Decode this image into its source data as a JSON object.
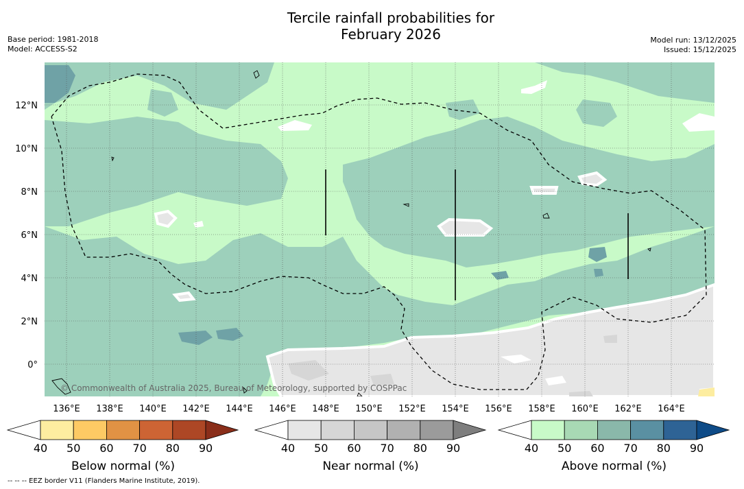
{
  "header": {
    "title_line1": "Tercile rainfall probabilities for",
    "title_line2": "February 2026",
    "base_period": "Base period: 1981-2018",
    "model": "Model: ACCESS-S2",
    "model_run": "Model run: 13/12/2025",
    "issued": "Issued: 15/12/2025"
  },
  "map": {
    "lat_labels": [
      "12°N",
      "10°N",
      "8°N",
      "6°N",
      "4°N",
      "2°N",
      "0°"
    ],
    "lon_labels": [
      "136°E",
      "138°E",
      "140°E",
      "142°E",
      "144°E",
      "146°E",
      "148°E",
      "150°E",
      "152°E",
      "154°E",
      "156°E",
      "158°E",
      "160°E",
      "162°E",
      "164°E"
    ],
    "copyright": "© Commonwealth of Australia 2025, Bureau of Meteorology, supported by COSPPac"
  },
  "colorbars": [
    {
      "label": "Below normal (%)",
      "ticks": [
        "40",
        "50",
        "60",
        "70",
        "80",
        "90"
      ],
      "colors": [
        "#ffffff",
        "#fdeda0",
        "#fdca64",
        "#e19244",
        "#cd6434",
        "#ad4725",
        "#8a2e1a"
      ]
    },
    {
      "label": "Near normal (%)",
      "ticks": [
        "40",
        "50",
        "60",
        "70",
        "80",
        "90"
      ],
      "colors": [
        "#ffffff",
        "#e6e6e6",
        "#d6d6d6",
        "#c6c6c6",
        "#b1b1b1",
        "#9b9b9b",
        "#7e7e7e"
      ]
    },
    {
      "label": "Above normal (%)",
      "ticks": [
        "40",
        "50",
        "60",
        "70",
        "80",
        "90"
      ],
      "colors": [
        "#ffffff",
        "#c8fac8",
        "#a8d9b4",
        "#8ab8aa",
        "#5a90a2",
        "#2e6395",
        "#0e4b87"
      ]
    }
  ],
  "footnote": "--  --  -- EEZ border V11 (Flanders Marine Institute, 2019).",
  "colors": {
    "land_fill": "#ffffff",
    "grid": "#555555"
  }
}
